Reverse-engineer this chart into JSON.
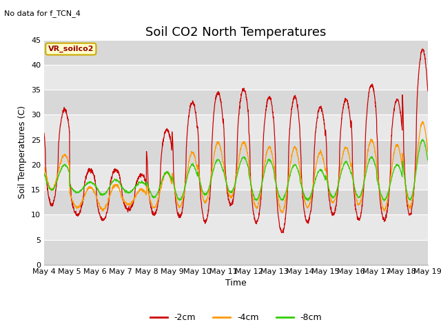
{
  "title": "Soil CO2 North Temperatures",
  "subtitle": "No data for f_TCN_4",
  "xlabel": "Time",
  "ylabel": "Soil Temperatures (C)",
  "ylim": [
    0,
    45
  ],
  "x_tick_labels": [
    "May 4",
    "May 5",
    "May 6",
    "May 7",
    "May 8",
    "May 9",
    "May 10",
    "May 11",
    "May 12",
    "May 13",
    "May 14",
    "May 15",
    "May 16",
    "May 17",
    "May 18",
    "May 19"
  ],
  "bg_color": "#e8e8e8",
  "band_color": "#d0d0d0",
  "white_band": "#e8e8e8",
  "legend_items": [
    {
      "label": "-2cm",
      "color": "#cc0000"
    },
    {
      "label": "-4cm",
      "color": "#ff9900"
    },
    {
      "label": "-8cm",
      "color": "#33cc00"
    }
  ],
  "vr_box": {
    "text": "VR_soilco2",
    "facecolor": "#ffffcc",
    "edgecolor": "#ccaa00"
  },
  "title_fontsize": 13,
  "axis_fontsize": 8,
  "label_fontsize": 9,
  "legend_fontsize": 9,
  "subtitle_fontsize": 8,
  "daily_amp_2cm": [
    9.5,
    4.5,
    5.0,
    3.5,
    8.5,
    11.5,
    13.0,
    11.5,
    12.5,
    13.5,
    11.5,
    11.5,
    13.5,
    12.0,
    16.5,
    5.0
  ],
  "daily_mid_2cm": [
    21.5,
    14.5,
    14.0,
    14.5,
    18.5,
    21.0,
    21.5,
    23.5,
    21.0,
    20.0,
    20.0,
    21.5,
    22.5,
    21.0,
    26.5,
    17.0
  ],
  "daily_amp_4cm": [
    3.5,
    2.0,
    2.5,
    1.5,
    3.5,
    5.5,
    6.0,
    5.5,
    6.0,
    6.5,
    5.5,
    5.5,
    6.5,
    6.5,
    8.5,
    4.0
  ],
  "daily_mid_4cm": [
    18.5,
    13.5,
    13.5,
    13.5,
    15.0,
    17.0,
    18.5,
    19.0,
    17.5,
    17.0,
    17.0,
    18.0,
    18.5,
    17.5,
    20.0,
    16.0
  ],
  "daily_amp_8cm": [
    2.5,
    1.0,
    1.5,
    1.0,
    2.5,
    3.5,
    3.5,
    3.5,
    4.0,
    3.5,
    3.0,
    3.5,
    4.0,
    3.5,
    6.0,
    3.0
  ],
  "daily_mid_8cm": [
    17.5,
    15.5,
    15.5,
    15.5,
    16.0,
    16.5,
    17.5,
    18.0,
    17.0,
    16.5,
    16.0,
    17.0,
    17.5,
    16.5,
    19.0,
    16.0
  ],
  "phase": 0.55,
  "n_points": 2160
}
